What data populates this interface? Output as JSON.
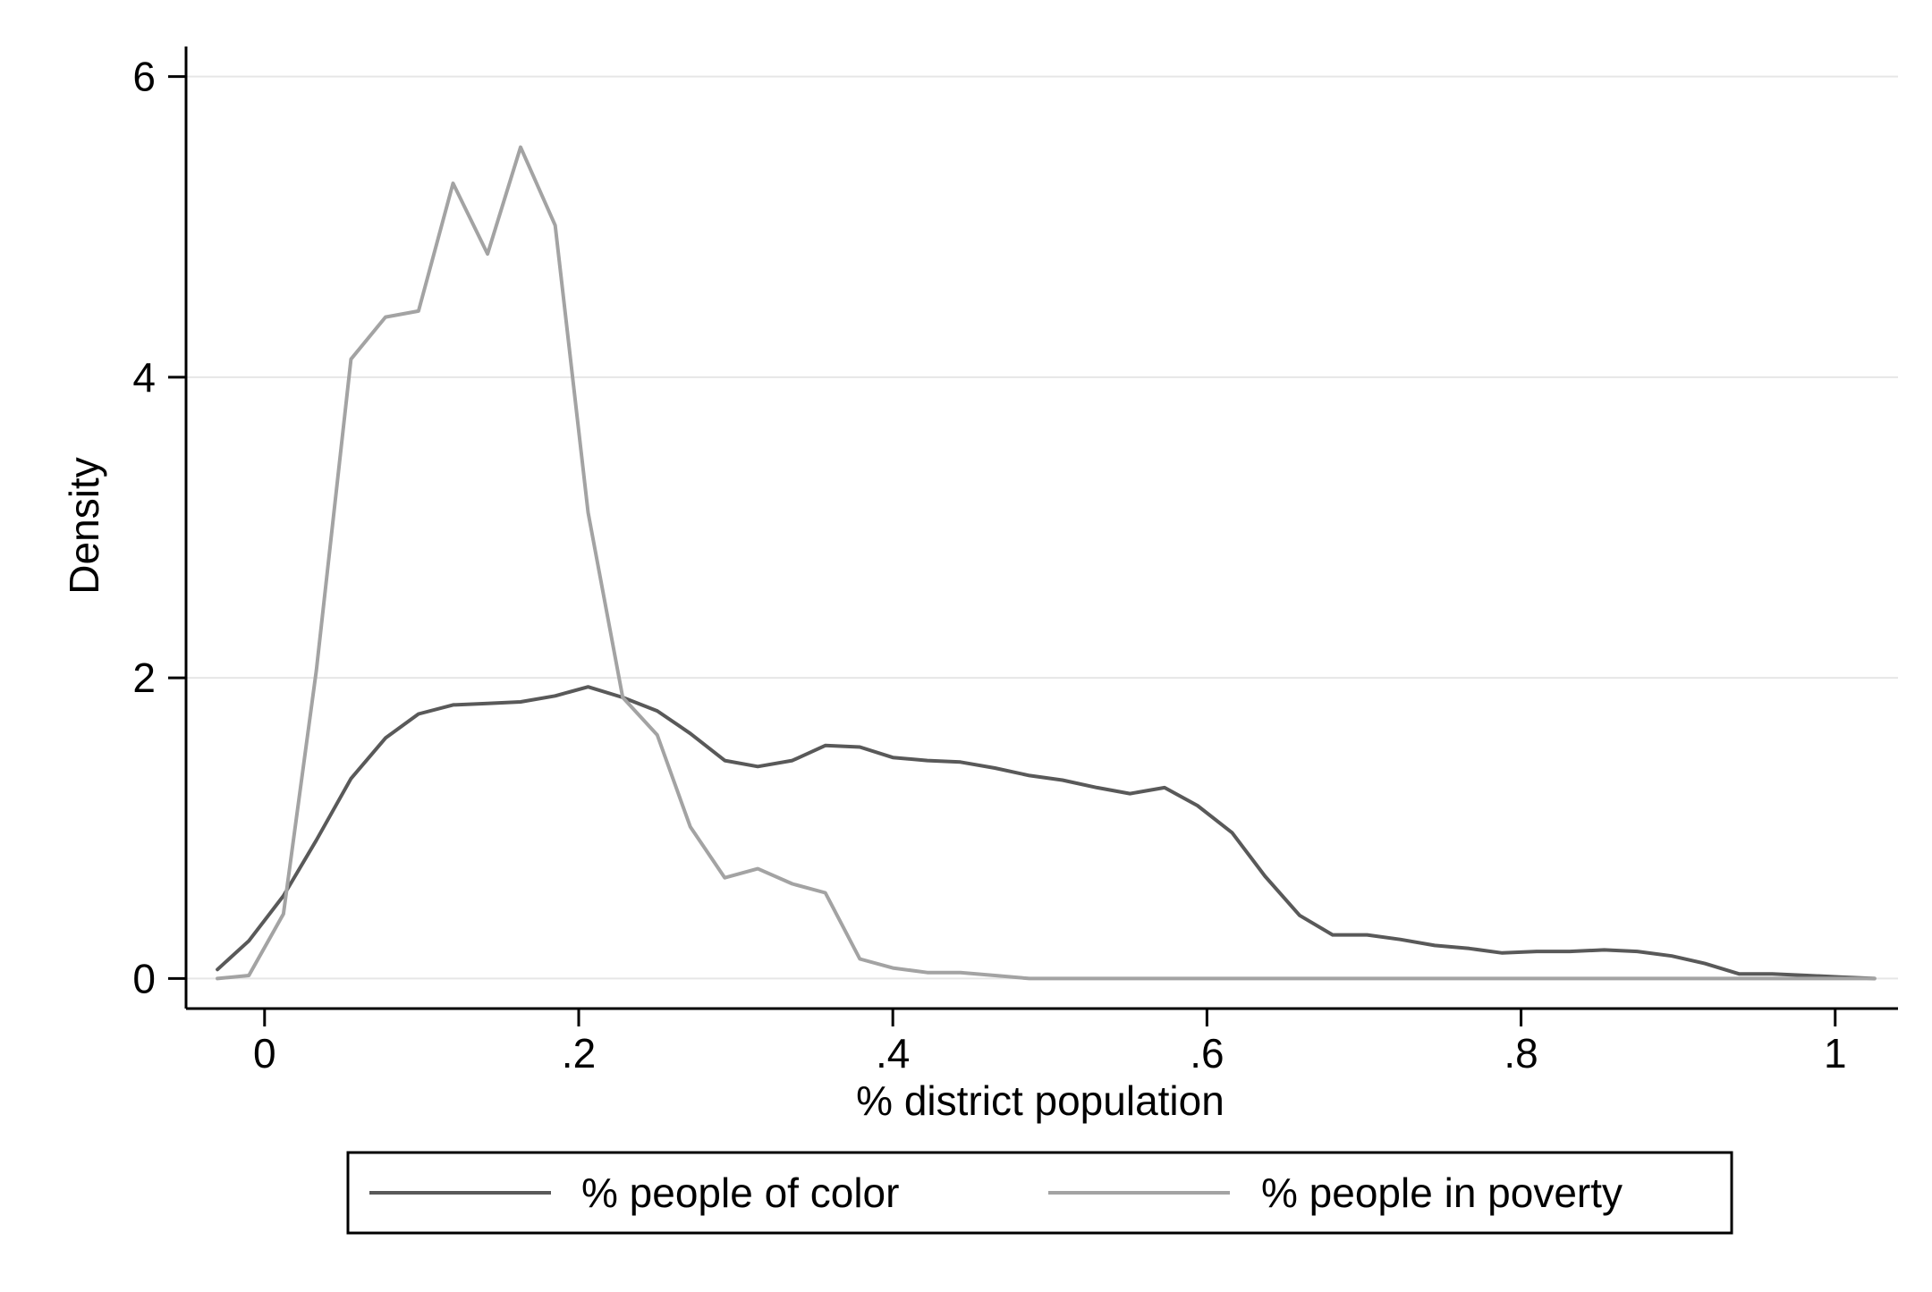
{
  "chart_data": {
    "type": "line",
    "title": "",
    "xlabel": "% district population",
    "ylabel": "Density",
    "xlim": [
      -0.05,
      1.04
    ],
    "ylim": [
      -0.2,
      6.2
    ],
    "x_ticks": [
      0,
      0.2,
      0.4,
      0.6,
      0.8,
      1
    ],
    "x_tick_labels": [
      "0",
      ".2",
      ".4",
      ".6",
      ".8",
      "1"
    ],
    "y_ticks": [
      0,
      2,
      4,
      6
    ],
    "y_tick_labels": [
      "0",
      "2",
      "4",
      "6"
    ],
    "grid": true,
    "legend_position": "bottom",
    "series": [
      {
        "name": "% people of color",
        "color": "#595959",
        "x": [
          -0.03,
          -0.01,
          0.012,
          0.033,
          0.055,
          0.077,
          0.098,
          0.12,
          0.142,
          0.163,
          0.185,
          0.206,
          0.228,
          0.25,
          0.271,
          0.293,
          0.314,
          0.336,
          0.357,
          0.379,
          0.4,
          0.422,
          0.443,
          0.465,
          0.487,
          0.508,
          0.53,
          0.551,
          0.573,
          0.594,
          0.616,
          0.637,
          0.659,
          0.68,
          0.702,
          0.723,
          0.745,
          0.767,
          0.788,
          0.81,
          0.831,
          0.853,
          0.874,
          0.896,
          0.917,
          0.939,
          0.96,
          0.982,
          1.003,
          1.025
        ],
        "y": [
          0.06,
          0.25,
          0.55,
          0.92,
          1.33,
          1.6,
          1.76,
          1.82,
          1.83,
          1.84,
          1.88,
          1.94,
          1.87,
          1.78,
          1.63,
          1.45,
          1.41,
          1.45,
          1.55,
          1.54,
          1.47,
          1.45,
          1.44,
          1.4,
          1.35,
          1.32,
          1.27,
          1.23,
          1.27,
          1.15,
          0.97,
          0.68,
          0.42,
          0.29,
          0.29,
          0.26,
          0.22,
          0.2,
          0.17,
          0.18,
          0.18,
          0.19,
          0.18,
          0.15,
          0.1,
          0.03,
          0.03,
          0.02,
          0.01,
          0.0
        ]
      },
      {
        "name": "% people in poverty",
        "color": "#a3a3a3",
        "x": [
          -0.03,
          -0.01,
          0.012,
          0.033,
          0.055,
          0.077,
          0.098,
          0.12,
          0.142,
          0.163,
          0.185,
          0.206,
          0.228,
          0.25,
          0.271,
          0.293,
          0.314,
          0.336,
          0.357,
          0.379,
          0.4,
          0.422,
          0.443,
          0.465,
          0.487,
          0.508,
          0.53,
          0.551,
          0.573,
          0.594,
          0.616,
          0.637,
          0.659,
          0.68,
          0.702,
          0.723,
          0.745,
          0.767,
          0.788,
          0.81,
          0.831,
          0.853,
          0.874,
          0.896,
          0.917,
          0.939,
          0.96,
          0.982,
          1.003,
          1.025
        ],
        "y": [
          0.0,
          0.02,
          0.43,
          2.05,
          4.12,
          4.4,
          4.44,
          5.29,
          4.82,
          5.53,
          5.01,
          3.1,
          1.87,
          1.62,
          1.01,
          0.67,
          0.73,
          0.63,
          0.57,
          0.13,
          0.07,
          0.04,
          0.04,
          0.02,
          0.0,
          0.0,
          0.0,
          0.0,
          0.0,
          0.0,
          0.0,
          0.0,
          0.0,
          0.0,
          0.0,
          0.0,
          0.0,
          0.0,
          0.0,
          0.0,
          0.0,
          0.0,
          0.0,
          0.0,
          0.0,
          0.0,
          0.0,
          0.0,
          0.0,
          0.0
        ]
      }
    ]
  }
}
